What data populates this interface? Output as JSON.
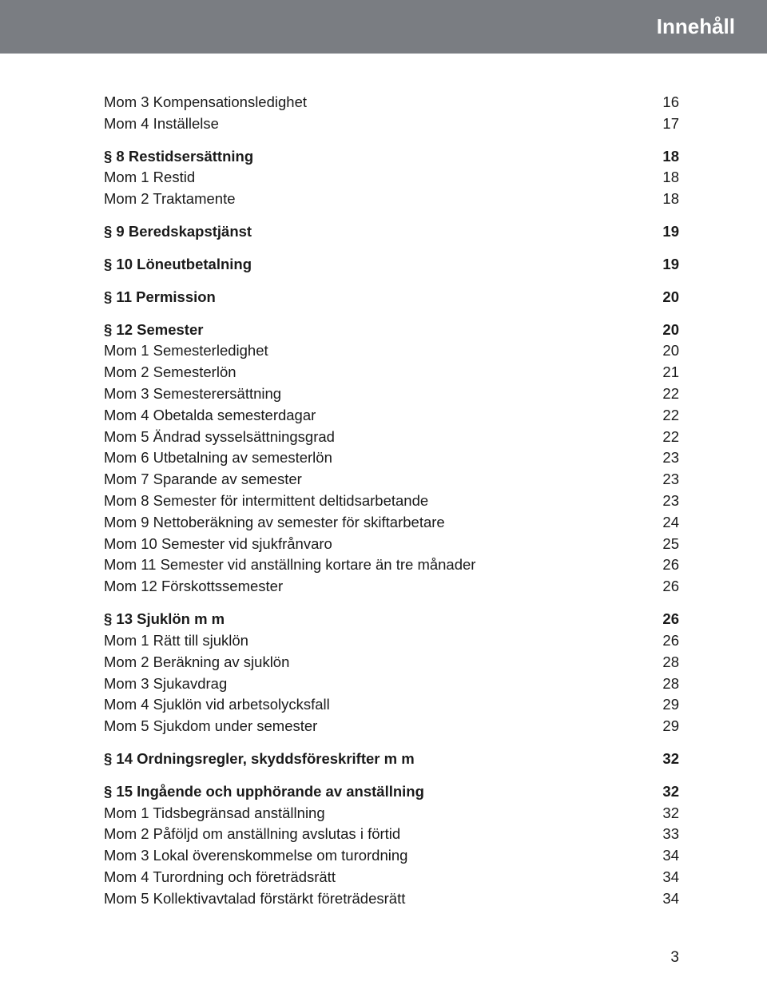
{
  "header": {
    "title": "Innehåll"
  },
  "toc": [
    {
      "label": "Mom 3 Kompensationsledighet",
      "page": "16",
      "bold": false,
      "gap": false
    },
    {
      "label": "Mom 4 Inställelse",
      "page": "17",
      "bold": false,
      "gap": false
    },
    {
      "label": "§ 8 Restidsersättning",
      "page": "18",
      "bold": true,
      "gap": true
    },
    {
      "label": "Mom 1 Restid",
      "page": "18",
      "bold": false,
      "gap": false
    },
    {
      "label": "Mom 2 Traktamente",
      "page": "18",
      "bold": false,
      "gap": false
    },
    {
      "label": "§ 9 Beredskapstjänst",
      "page": "19",
      "bold": true,
      "gap": true
    },
    {
      "label": "§ 10 Löneutbetalning",
      "page": "19",
      "bold": true,
      "gap": true
    },
    {
      "label": "§ 11 Permission",
      "page": "20",
      "bold": true,
      "gap": true
    },
    {
      "label": "§ 12 Semester",
      "page": "20",
      "bold": true,
      "gap": true
    },
    {
      "label": "Mom 1 Semesterledighet",
      "page": "20",
      "bold": false,
      "gap": false
    },
    {
      "label": "Mom 2 Semesterlön",
      "page": "21",
      "bold": false,
      "gap": false
    },
    {
      "label": "Mom 3 Semesterersättning",
      "page": "22",
      "bold": false,
      "gap": false
    },
    {
      "label": "Mom 4 Obetalda semesterdagar",
      "page": "22",
      "bold": false,
      "gap": false
    },
    {
      "label": "Mom 5 Ändrad sysselsättningsgrad",
      "page": "22",
      "bold": false,
      "gap": false
    },
    {
      "label": "Mom 6 Utbetalning av semesterlön",
      "page": "23",
      "bold": false,
      "gap": false
    },
    {
      "label": "Mom 7 Sparande av semester",
      "page": "23",
      "bold": false,
      "gap": false
    },
    {
      "label": "Mom 8 Semester för intermittent deltidsarbetande",
      "page": "23",
      "bold": false,
      "gap": false
    },
    {
      "label": "Mom 9 Nettoberäkning av semester för skiftarbetare",
      "page": "24",
      "bold": false,
      "gap": false
    },
    {
      "label": "Mom 10 Semester vid sjukfrånvaro",
      "page": "25",
      "bold": false,
      "gap": false
    },
    {
      "label": "Mom 11 Semester vid anställning kortare än tre månader",
      "page": "26",
      "bold": false,
      "gap": false
    },
    {
      "label": "Mom 12 Förskottssemester",
      "page": "26",
      "bold": false,
      "gap": false
    },
    {
      "label": "§ 13 Sjuklön m m",
      "page": "26",
      "bold": true,
      "gap": true
    },
    {
      "label": "Mom 1 Rätt till sjuklön",
      "page": "26",
      "bold": false,
      "gap": false
    },
    {
      "label": "Mom 2 Beräkning av sjuklön",
      "page": "28",
      "bold": false,
      "gap": false
    },
    {
      "label": "Mom 3 Sjukavdrag",
      "page": "28",
      "bold": false,
      "gap": false
    },
    {
      "label": "Mom 4 Sjuklön vid arbetsolycksfall",
      "page": "29",
      "bold": false,
      "gap": false
    },
    {
      "label": "Mom 5 Sjukdom under semester",
      "page": "29",
      "bold": false,
      "gap": false
    },
    {
      "label": "§ 14 Ordningsregler, skyddsföreskrifter m m",
      "page": "32",
      "bold": true,
      "gap": true
    },
    {
      "label": "§ 15 Ingående och upphörande av anställning",
      "page": "32",
      "bold": true,
      "gap": true
    },
    {
      "label": "Mom 1 Tidsbegränsad anställning",
      "page": "32",
      "bold": false,
      "gap": false
    },
    {
      "label": "Mom 2 Påföljd om anställning avslutas i förtid",
      "page": "33",
      "bold": false,
      "gap": false
    },
    {
      "label": "Mom 3 Lokal överenskommelse om turordning",
      "page": "34",
      "bold": false,
      "gap": false
    },
    {
      "label": "Mom 4 Turordning och företrädsrätt",
      "page": "34",
      "bold": false,
      "gap": false
    },
    {
      "label": "Mom 5 Kollektivavtalad förstärkt företrädesrätt",
      "page": "34",
      "bold": false,
      "gap": false
    }
  ],
  "footer": {
    "page_number": "3"
  }
}
